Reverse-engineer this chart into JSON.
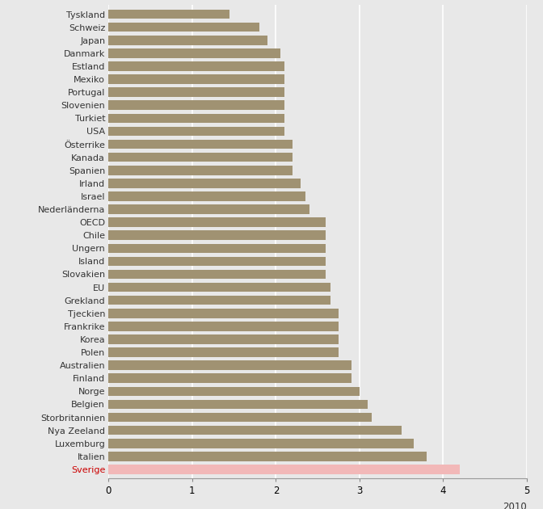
{
  "categories": [
    "Sverige",
    "Italien",
    "Luxemburg",
    "Nya Zeeland",
    "Storbritannien",
    "Belgien",
    "Norge",
    "Finland",
    "Australien",
    "Polen",
    "Korea",
    "Frankrike",
    "Tjeckien",
    "Grekland",
    "EU",
    "Slovakien",
    "Island",
    "Ungern",
    "Chile",
    "OECD",
    "Nederländerna",
    "Israel",
    "Irland",
    "Spanien",
    "Kanada",
    "Österrike",
    "USA",
    "Turkiet",
    "Slovenien",
    "Portugal",
    "Mexiko",
    "Estland",
    "Danmark",
    "Japan",
    "Schweiz",
    "Tyskland"
  ],
  "values": [
    4.2,
    3.8,
    3.65,
    3.5,
    3.15,
    3.1,
    3.0,
    2.9,
    2.9,
    2.75,
    2.75,
    2.75,
    2.75,
    2.65,
    2.65,
    2.6,
    2.6,
    2.6,
    2.6,
    2.6,
    2.4,
    2.35,
    2.3,
    2.2,
    2.2,
    2.2,
    2.1,
    2.1,
    2.1,
    2.1,
    2.1,
    2.1,
    2.05,
    1.9,
    1.8,
    1.45
  ],
  "bar_colors": [
    "#f2b8b8",
    "#a09272",
    "#a09272",
    "#a09272",
    "#a09272",
    "#a09272",
    "#a09272",
    "#a09272",
    "#a09272",
    "#a09272",
    "#a09272",
    "#a09272",
    "#a09272",
    "#a09272",
    "#a09272",
    "#a09272",
    "#a09272",
    "#a09272",
    "#a09272",
    "#a09272",
    "#a09272",
    "#a09272",
    "#a09272",
    "#a09272",
    "#a09272",
    "#a09272",
    "#a09272",
    "#a09272",
    "#a09272",
    "#a09272",
    "#a09272",
    "#a09272",
    "#a09272",
    "#a09272",
    "#a09272",
    "#a09272"
  ],
  "label_colors": [
    "#cc0000",
    "#333333",
    "#333333",
    "#333333",
    "#333333",
    "#333333",
    "#333333",
    "#333333",
    "#333333",
    "#333333",
    "#333333",
    "#333333",
    "#333333",
    "#333333",
    "#333333",
    "#333333",
    "#333333",
    "#333333",
    "#333333",
    "#333333",
    "#333333",
    "#333333",
    "#333333",
    "#333333",
    "#333333",
    "#333333",
    "#333333",
    "#333333",
    "#333333",
    "#333333",
    "#333333",
    "#333333",
    "#333333",
    "#333333",
    "#333333",
    "#333333"
  ],
  "xlim": [
    0,
    5
  ],
  "xticks": [
    0,
    1,
    2,
    3,
    4,
    5
  ],
  "year_label": "2010",
  "background_color": "#e8e8e8",
  "plot_bg_color": "#e8e8e8",
  "grid_color": "#ffffff",
  "bar_height": 0.72,
  "label_fontsize": 8.0,
  "tick_fontsize": 8.5
}
